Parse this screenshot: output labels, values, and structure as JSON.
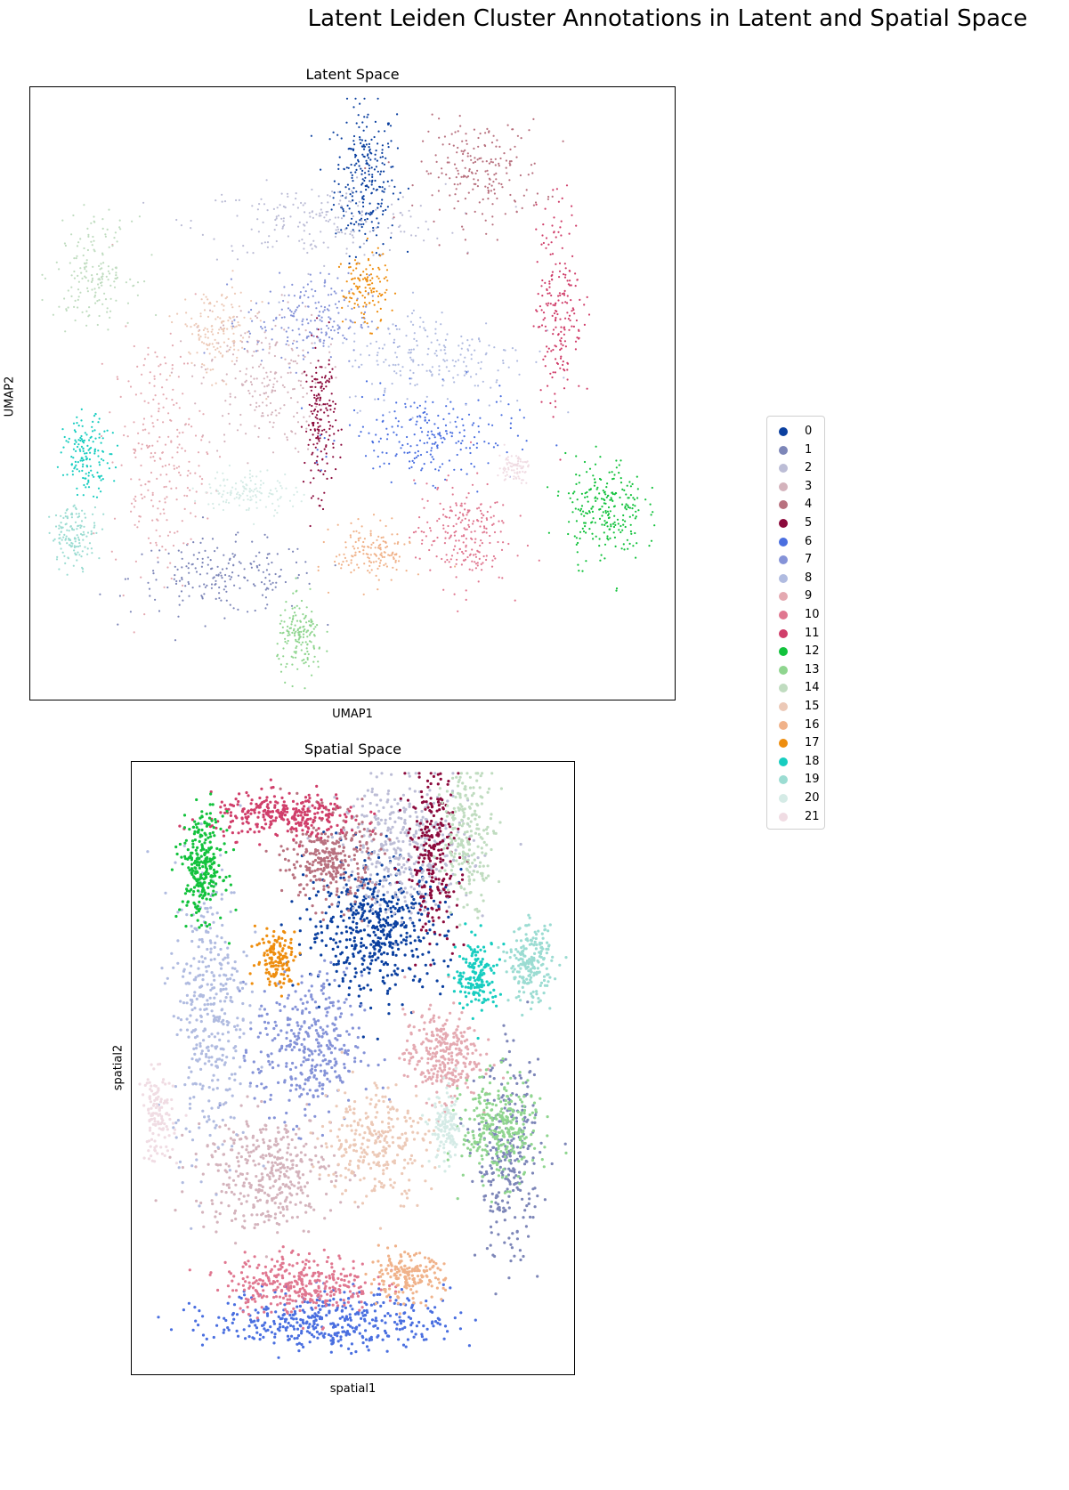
{
  "figure": {
    "suptitle": "Latent Leiden Cluster Annotations in Latent and Spatial Space"
  },
  "legend": {
    "items": [
      {
        "label": "0",
        "color": "#0a3f9f"
      },
      {
        "label": "1",
        "color": "#7d86b8"
      },
      {
        "label": "2",
        "color": "#bcbdd6"
      },
      {
        "label": "3",
        "color": "#d4b3bc"
      },
      {
        "label": "4",
        "color": "#b8717f"
      },
      {
        "label": "5",
        "color": "#8b0a3c"
      },
      {
        "label": "6",
        "color": "#4a6fe0"
      },
      {
        "label": "7",
        "color": "#8593d8"
      },
      {
        "label": "8",
        "color": "#b0bbe0"
      },
      {
        "label": "9",
        "color": "#e4a9b1"
      },
      {
        "label": "10",
        "color": "#e07790"
      },
      {
        "label": "11",
        "color": "#d03e6a"
      },
      {
        "label": "12",
        "color": "#12c23c"
      },
      {
        "label": "13",
        "color": "#8fd58f"
      },
      {
        "label": "14",
        "color": "#c0dcc0"
      },
      {
        "label": "15",
        "color": "#ecc9b7"
      },
      {
        "label": "16",
        "color": "#f0b28a"
      },
      {
        "label": "17",
        "color": "#ee8d0e"
      },
      {
        "label": "18",
        "color": "#17cdc0"
      },
      {
        "label": "19",
        "color": "#9bdcd2"
      },
      {
        "label": "20",
        "color": "#d5ebe6"
      },
      {
        "label": "21",
        "color": "#f0dce3"
      }
    ]
  },
  "chart_data": [
    {
      "type": "scatter",
      "title": "Latent Space",
      "xlabel": "UMAP1",
      "ylabel": "UMAP2",
      "xticks": [],
      "yticks": [],
      "grid": false,
      "legend_placement": "right",
      "clusters": [
        {
          "label": "0",
          "center": [
            0.52,
            0.85
          ],
          "spread": [
            0.04,
            0.1
          ],
          "n": 260
        },
        {
          "label": "1",
          "center": [
            0.3,
            0.2
          ],
          "spread": [
            0.12,
            0.05
          ],
          "n": 200
        },
        {
          "label": "2",
          "center": [
            0.45,
            0.78
          ],
          "spread": [
            0.16,
            0.05
          ],
          "n": 200
        },
        {
          "label": "3",
          "center": [
            0.36,
            0.52
          ],
          "spread": [
            0.08,
            0.1
          ],
          "n": 220
        },
        {
          "label": "4",
          "center": [
            0.7,
            0.86
          ],
          "spread": [
            0.08,
            0.07
          ],
          "n": 200
        },
        {
          "label": "5",
          "center": [
            0.45,
            0.46
          ],
          "spread": [
            0.02,
            0.1
          ],
          "n": 180
        },
        {
          "label": "6",
          "center": [
            0.62,
            0.43
          ],
          "spread": [
            0.11,
            0.06
          ],
          "n": 220
        },
        {
          "label": "7",
          "center": [
            0.43,
            0.62
          ],
          "spread": [
            0.08,
            0.06
          ],
          "n": 200
        },
        {
          "label": "8",
          "center": [
            0.63,
            0.56
          ],
          "spread": [
            0.12,
            0.07
          ],
          "n": 200
        },
        {
          "label": "9",
          "center": [
            0.2,
            0.4
          ],
          "spread": [
            0.06,
            0.16
          ],
          "n": 240
        },
        {
          "label": "10",
          "center": [
            0.67,
            0.27
          ],
          "spread": [
            0.06,
            0.07
          ],
          "n": 220
        },
        {
          "label": "11",
          "center": [
            0.82,
            0.65
          ],
          "spread": [
            0.03,
            0.14
          ],
          "n": 200
        },
        {
          "label": "12",
          "center": [
            0.89,
            0.31
          ],
          "spread": [
            0.05,
            0.07
          ],
          "n": 240
        },
        {
          "label": "13",
          "center": [
            0.42,
            0.1
          ],
          "spread": [
            0.03,
            0.05
          ],
          "n": 160
        },
        {
          "label": "14",
          "center": [
            0.1,
            0.7
          ],
          "spread": [
            0.05,
            0.07
          ],
          "n": 170
        },
        {
          "label": "15",
          "center": [
            0.29,
            0.6
          ],
          "spread": [
            0.05,
            0.06
          ],
          "n": 150
        },
        {
          "label": "16",
          "center": [
            0.53,
            0.24
          ],
          "spread": [
            0.05,
            0.04
          ],
          "n": 150
        },
        {
          "label": "17",
          "center": [
            0.52,
            0.67
          ],
          "spread": [
            0.03,
            0.05
          ],
          "n": 120
        },
        {
          "label": "18",
          "center": [
            0.09,
            0.4
          ],
          "spread": [
            0.03,
            0.05
          ],
          "n": 150
        },
        {
          "label": "19",
          "center": [
            0.07,
            0.27
          ],
          "spread": [
            0.03,
            0.04
          ],
          "n": 140
        },
        {
          "label": "20",
          "center": [
            0.34,
            0.34
          ],
          "spread": [
            0.06,
            0.03
          ],
          "n": 130
        },
        {
          "label": "21",
          "center": [
            0.75,
            0.38
          ],
          "spread": [
            0.02,
            0.02
          ],
          "n": 80
        }
      ]
    },
    {
      "type": "scatter",
      "title": "Spatial Space",
      "xlabel": "spatial1",
      "ylabel": "spatial2",
      "xticks": [],
      "yticks": [],
      "grid": false,
      "clusters": [
        {
          "label": "0",
          "center": [
            0.55,
            0.73
          ],
          "spread": [
            0.13,
            0.09
          ],
          "n": 520
        },
        {
          "label": "1",
          "center": [
            0.85,
            0.35
          ],
          "spread": [
            0.06,
            0.13
          ],
          "n": 300
        },
        {
          "label": "2",
          "center": [
            0.62,
            0.86
          ],
          "spread": [
            0.12,
            0.09
          ],
          "n": 360
        },
        {
          "label": "3",
          "center": [
            0.3,
            0.33
          ],
          "spread": [
            0.13,
            0.08
          ],
          "n": 380
        },
        {
          "label": "4",
          "center": [
            0.45,
            0.84
          ],
          "spread": [
            0.08,
            0.06
          ],
          "n": 300
        },
        {
          "label": "5",
          "center": [
            0.68,
            0.85
          ],
          "spread": [
            0.05,
            0.11
          ],
          "n": 240
        },
        {
          "label": "6",
          "center": [
            0.45,
            0.09
          ],
          "spread": [
            0.22,
            0.04
          ],
          "n": 420
        },
        {
          "label": "7",
          "center": [
            0.4,
            0.53
          ],
          "spread": [
            0.1,
            0.1
          ],
          "n": 360
        },
        {
          "label": "8",
          "center": [
            0.18,
            0.6
          ],
          "spread": [
            0.07,
            0.2
          ],
          "n": 380
        },
        {
          "label": "9",
          "center": [
            0.7,
            0.52
          ],
          "spread": [
            0.07,
            0.06
          ],
          "n": 300
        },
        {
          "label": "10",
          "center": [
            0.38,
            0.15
          ],
          "spread": [
            0.14,
            0.04
          ],
          "n": 340
        },
        {
          "label": "11",
          "center": [
            0.35,
            0.91
          ],
          "spread": [
            0.14,
            0.03
          ],
          "n": 300
        },
        {
          "label": "12",
          "center": [
            0.16,
            0.83
          ],
          "spread": [
            0.04,
            0.07
          ],
          "n": 280
        },
        {
          "label": "13",
          "center": [
            0.83,
            0.4
          ],
          "spread": [
            0.07,
            0.07
          ],
          "n": 300
        },
        {
          "label": "14",
          "center": [
            0.76,
            0.88
          ],
          "spread": [
            0.05,
            0.09
          ],
          "n": 220
        },
        {
          "label": "15",
          "center": [
            0.55,
            0.38
          ],
          "spread": [
            0.1,
            0.08
          ],
          "n": 280
        },
        {
          "label": "16",
          "center": [
            0.62,
            0.16
          ],
          "spread": [
            0.07,
            0.03
          ],
          "n": 180
        },
        {
          "label": "17",
          "center": [
            0.33,
            0.68
          ],
          "spread": [
            0.04,
            0.04
          ],
          "n": 140
        },
        {
          "label": "18",
          "center": [
            0.78,
            0.65
          ],
          "spread": [
            0.04,
            0.05
          ],
          "n": 160
        },
        {
          "label": "19",
          "center": [
            0.9,
            0.67
          ],
          "spread": [
            0.04,
            0.05
          ],
          "n": 200
        },
        {
          "label": "20",
          "center": [
            0.71,
            0.4
          ],
          "spread": [
            0.03,
            0.05
          ],
          "n": 130
        },
        {
          "label": "21",
          "center": [
            0.06,
            0.42
          ],
          "spread": [
            0.03,
            0.06
          ],
          "n": 130
        }
      ]
    }
  ]
}
